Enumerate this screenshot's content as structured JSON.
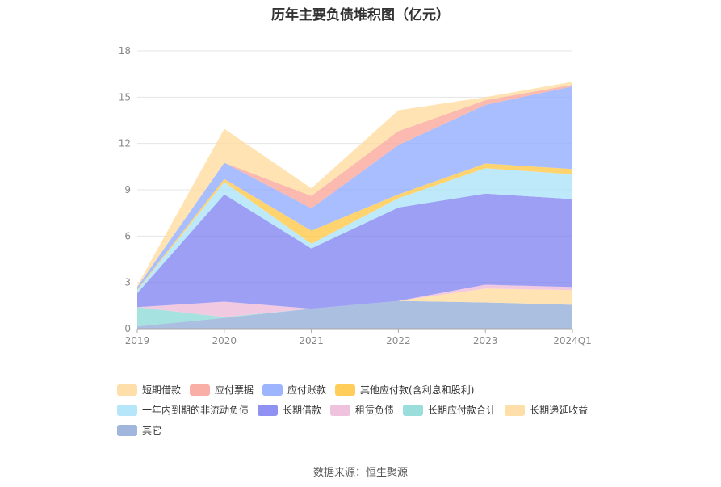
{
  "title": "历年主要负债堆积图（亿元）",
  "source": "数据来源：恒生聚源",
  "chart_data": {
    "type": "area",
    "stacked": true,
    "x": [
      "2019",
      "2020",
      "2021",
      "2022",
      "2023",
      "2024Q1"
    ],
    "ylim": [
      0,
      18
    ],
    "yticks": [
      0,
      3,
      6,
      9,
      12,
      15,
      18
    ],
    "grid": true,
    "legend_position": "bottom",
    "series": [
      {
        "name": "其它",
        "color": "#8fa9d6",
        "values": [
          0.15,
          0.7,
          1.3,
          1.8,
          1.7,
          1.55
        ]
      },
      {
        "name": "长期递延收益",
        "color": "#ffd99a",
        "values": [
          0.0,
          0.0,
          0.0,
          0.0,
          0.9,
          0.95
        ]
      },
      {
        "name": "长期应付款合计",
        "color": "#88d8d6",
        "values": [
          1.25,
          0.05,
          0.0,
          0.0,
          0.0,
          0.0
        ]
      },
      {
        "name": "租赁负债",
        "color": "#ecb8d8",
        "values": [
          0.0,
          1.0,
          0.0,
          0.0,
          0.25,
          0.2
        ]
      },
      {
        "name": "长期借款",
        "color": "#7b7ff0",
        "values": [
          0.9,
          6.95,
          3.9,
          6.05,
          5.9,
          5.7
        ]
      },
      {
        "name": "一年内到期的非流动负债",
        "color": "#a8e2f8",
        "values": [
          0.2,
          0.8,
          0.3,
          0.6,
          1.65,
          1.6
        ]
      },
      {
        "name": "其他应付款(含利息和股利)",
        "color": "#ffc53d",
        "values": [
          0.05,
          0.2,
          0.85,
          0.25,
          0.3,
          0.35
        ]
      },
      {
        "name": "应付账款",
        "color": "#8ca8ff",
        "values": [
          0.15,
          1.05,
          1.45,
          3.2,
          3.8,
          5.35
        ]
      },
      {
        "name": "应付票据",
        "color": "#f9a196",
        "values": [
          0.0,
          0.0,
          0.8,
          0.9,
          0.3,
          0.1
        ]
      },
      {
        "name": "短期借款",
        "color": "#ffd99a",
        "values": [
          0.1,
          2.2,
          0.5,
          1.35,
          0.2,
          0.2
        ]
      }
    ]
  },
  "legend_rows": [
    [
      "短期借款",
      "应付票据",
      "应付账款",
      "其他应付款(含利息和股利)"
    ],
    [
      "一年内到期的非流动负债",
      "长期借款",
      "租赁负债",
      "长期应付款合计",
      "长期递延收益"
    ],
    [
      "其它"
    ]
  ]
}
